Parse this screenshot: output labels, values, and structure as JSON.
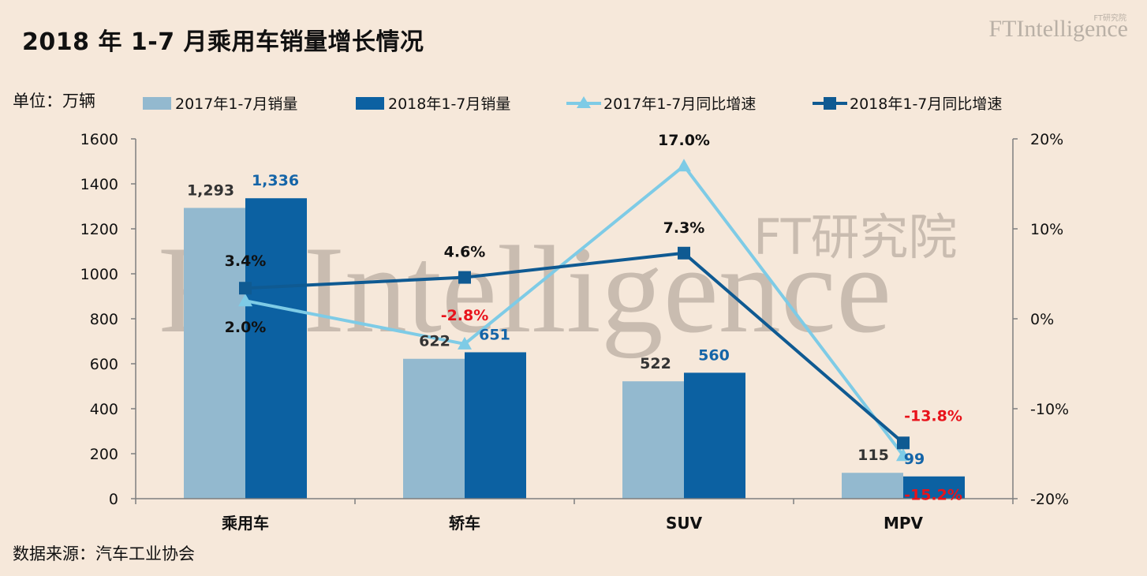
{
  "title": "2018 年 1-7 月乘用车销量增长情况",
  "unit_label": "单位：万辆",
  "source": "数据来源：汽车工业协会",
  "logo": {
    "text": "FTIntelligence",
    "sub": "FT研究院"
  },
  "watermark": {
    "text": "FTIntelligence",
    "sub": "FT研究院"
  },
  "colors": {
    "bar2017": "#93b9cf",
    "bar2018": "#0c61a2",
    "line2017": "#7ecbe6",
    "line2018": "#0f5a92",
    "negative": "#e8131b",
    "label2018": "#1565a8",
    "background": "#f6e8da"
  },
  "chart_data": {
    "type": "bar+line",
    "categories": [
      "乘用车",
      "轿车",
      "SUV",
      "MPV"
    ],
    "bar_series": [
      {
        "name": "2017年1-7月销量",
        "values": [
          1293,
          622,
          522,
          115
        ],
        "labels": [
          "1,293",
          "622",
          "522",
          "115"
        ]
      },
      {
        "name": "2018年1-7月销量",
        "values": [
          1336,
          651,
          560,
          99
        ],
        "labels": [
          "1,336",
          "651",
          "560",
          "99"
        ]
      }
    ],
    "line_series": [
      {
        "name": "2017年1-7月同比增速",
        "marker": "triangle",
        "values": [
          2.0,
          -2.8,
          17.0,
          -15.2
        ],
        "labels": [
          "2.0%",
          "-2.8%",
          "17.0%",
          "-15.2%"
        ]
      },
      {
        "name": "2018年1-7月同比增速",
        "marker": "square",
        "values": [
          3.4,
          4.6,
          7.3,
          -13.8
        ],
        "labels": [
          "3.4%",
          "4.6%",
          "7.3%",
          "-13.8%"
        ]
      }
    ],
    "y_left": {
      "min": 0,
      "max": 1600,
      "step": 200,
      "ticks": [
        "0",
        "200",
        "400",
        "600",
        "800",
        "1000",
        "1200",
        "1400",
        "1600"
      ]
    },
    "y_right": {
      "min": -20,
      "max": 20,
      "step": 10,
      "ticks": [
        "-20%",
        "-10%",
        "0%",
        "10%",
        "20%"
      ]
    },
    "legend_position": "top",
    "grid": false
  }
}
